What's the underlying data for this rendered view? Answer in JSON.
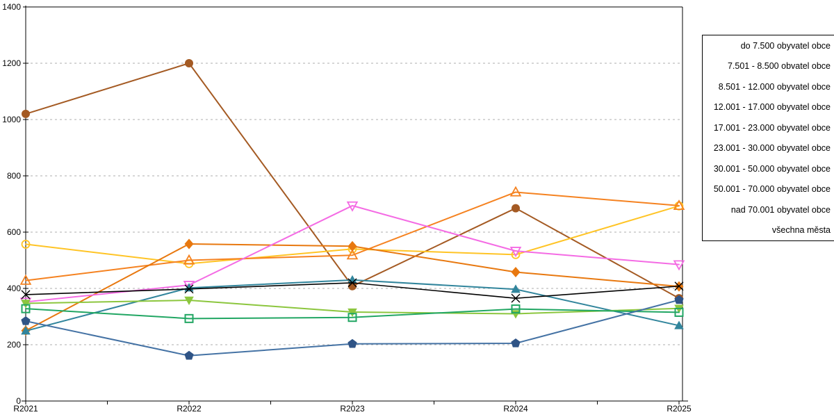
{
  "chart_data": {
    "type": "line",
    "title": "",
    "xlabel": "",
    "ylabel": "",
    "categories": [
      "R2021",
      "R2022",
      "R2023",
      "R2024",
      "R2025"
    ],
    "y_axis": {
      "min": 0,
      "max": 1400,
      "step": 200,
      "tick_labels": [
        "0",
        "200",
        "400",
        "600",
        "800",
        "1000",
        "1200",
        "1400"
      ]
    },
    "grid": "horizontal-dashed",
    "legend_position": "right",
    "series": [
      {
        "label": "do 7.500 obyvatel obce",
        "marker": "circle-filled",
        "color": "#A45A23",
        "values": [
          1020,
          1200,
          408,
          685,
          365
        ]
      },
      {
        "label": "7.501 - 8.500 obvatel obce",
        "marker": "circle-open",
        "color": "#FFC425",
        "values": [
          557,
          488,
          540,
          520,
          693
        ]
      },
      {
        "label": "8.501 - 12.000 obyvatel obce",
        "marker": "triangle-open",
        "color": "#F58220",
        "values": [
          428,
          500,
          518,
          742,
          694
        ]
      },
      {
        "label": "12.001 - 17.000 obyvatel obce",
        "marker": "diamond-filled",
        "color": "#E8780F",
        "values": [
          250,
          558,
          550,
          458,
          407
        ]
      },
      {
        "label": "17.001 - 23.000 obyvatel obce",
        "marker": "triangle-down-open",
        "color": "#F46BE4",
        "values": [
          352,
          412,
          694,
          533,
          485
        ]
      },
      {
        "label": "23.001 - 30.000 obyvatel obce",
        "marker": "x",
        "color": "#000000",
        "values": [
          378,
          398,
          420,
          365,
          408
        ]
      },
      {
        "label": "30.001 - 50.000 obyvatel obce",
        "marker": "triangle-filled",
        "color": "#31859C",
        "values": [
          249,
          402,
          430,
          397,
          268
        ]
      },
      {
        "label": "50.001 - 70.000 obyvatel obce",
        "marker": "triangle-down-filled",
        "color": "#8CC63E",
        "values": [
          347,
          358,
          316,
          310,
          329
        ]
      },
      {
        "label": "nad 70.001 obyvatel obce",
        "marker": "square-open",
        "color": "#21A663",
        "values": [
          328,
          293,
          297,
          327,
          315
        ]
      },
      {
        "label": "všechna města",
        "marker": "pentagon-filled",
        "color": "#2F5486",
        "line_color": "#4472A4",
        "values": [
          284,
          161,
          203,
          205,
          359
        ]
      }
    ]
  }
}
